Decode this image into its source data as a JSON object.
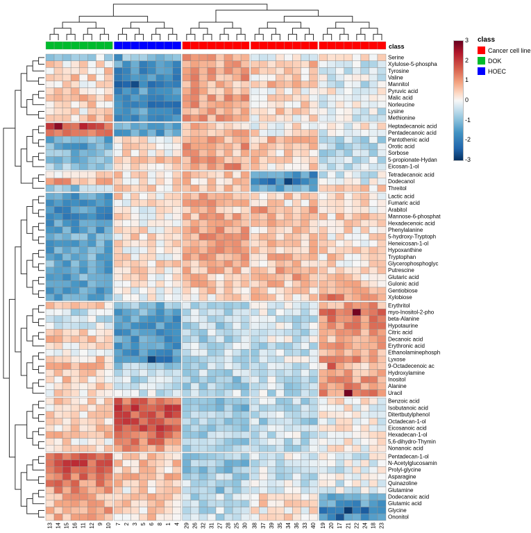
{
  "annotation": {
    "label": "class",
    "classes": [
      {
        "name": "Cancer cell line",
        "color": "#FF0000"
      },
      {
        "name": "DOK",
        "color": "#00BB2D"
      },
      {
        "name": "HOEC",
        "color": "#0000FF"
      }
    ]
  },
  "legend": {
    "title": "class"
  },
  "colorbar": {
    "ticks": [
      "3",
      "2",
      "1",
      "0",
      "-1",
      "-2",
      "-3"
    ],
    "max": 3,
    "min": -3
  },
  "chart_data": {
    "type": "heatmap",
    "value_range": [
      -3,
      3
    ],
    "jitter": 0.5,
    "palette": [
      [
        -3,
        "#053061"
      ],
      [
        -2.4,
        "#2166ac"
      ],
      [
        -1.6,
        "#4393c3"
      ],
      [
        -0.9,
        "#92c5de"
      ],
      [
        -0.35,
        "#d1e5f0"
      ],
      [
        0,
        "#f7f7f7"
      ],
      [
        0.35,
        "#fddbc7"
      ],
      [
        0.9,
        "#f4a582"
      ],
      [
        1.6,
        "#d6604d"
      ],
      [
        2.4,
        "#b2182b"
      ],
      [
        3,
        "#67001f"
      ]
    ],
    "col_groups": [
      {
        "class": "DOK",
        "cols": [
          "13",
          "14",
          "15",
          "16",
          "11",
          "12",
          "9",
          "10"
        ]
      },
      {
        "class": "HOEC",
        "cols": [
          "7",
          "2",
          "3",
          "5",
          "6",
          "8",
          "1",
          "4"
        ]
      },
      {
        "class": "Cancer cell line",
        "cols": [
          "29",
          "26",
          "32",
          "31",
          "27",
          "28",
          "25",
          "30"
        ]
      },
      {
        "class": "Cancer cell line",
        "cols": [
          "38",
          "37",
          "39",
          "35",
          "34",
          "36",
          "33",
          "40"
        ]
      },
      {
        "class": "Cancer cell line",
        "cols": [
          "19",
          "20",
          "17",
          "21",
          "22",
          "24",
          "18",
          "23"
        ]
      }
    ],
    "row_groups": [
      10,
      7,
      3,
      16,
      14,
      8,
      10
    ],
    "col_tree": [
      [
        0,
        1
      ],
      [
        2,
        [
          3,
          4
        ]
      ]
    ],
    "row_tree": [
      [
        0,
        [
          1,
          2
        ]
      ],
      [
        [
          3,
          4
        ],
        [
          5,
          6
        ]
      ]
    ],
    "row_labels": [
      "Serine",
      "Xylulose-5-phospha",
      "Tyrosine",
      "Valine",
      "Mannitol",
      "Pyruvic acid",
      "Malic acid",
      "Norleucine",
      "Lysine",
      "Methionine",
      "Heptadecanoic acid",
      "Pentadecanoic acid",
      "Pantothenic acid",
      "Orotic acid",
      "Sorbose",
      "5-propionate-Hydan",
      "Eicosan-1-ol",
      "Tetradecanoic acid",
      "Dodecanol",
      "Threitol",
      "Lactic acid",
      "Fumaric acid",
      "Arabitol",
      "Mannose-6-phosphat",
      "Hexadecenoic acid",
      "Phenylalanine",
      "5-hydroxy-Tryptoph",
      "Heneicosan-1-ol",
      "Hypoxanthine",
      "Tryptophan",
      "Glycerophosphoglyc",
      "Putrescine",
      "Glutaric acid",
      "Gulonic acid",
      "Gentiobiose",
      "Xylobiose",
      "Erythritol",
      "myo-Inositol-2-pho",
      "beta-Alanine",
      "Hypotaurine",
      "Citric acid",
      "Decanoic acid",
      "Erythronic acid",
      "Ethanolaminephosph",
      "Lyxose",
      "9-Octadecenoic ac",
      "Hydroxylamine",
      "Inositol",
      "Alanine",
      "Uracil",
      "Benzoic acid",
      "Isobutanoic acid",
      "Ditertbutylphenol",
      "Octadecan-1-ol",
      "Eicosanoic acid",
      "Hexadecan-1-ol",
      "5,6-dihydro-Thymin",
      "Nonanoic acid",
      "Pentadecan-1-ol",
      "N-Acetylglucosamin",
      "Prolyl-glycine",
      "Asparagine",
      "Quinazoline",
      "Glutamine",
      "Dodecanoic acid",
      "Glutamic acid",
      "Glycine",
      "Ononitol"
    ],
    "row_group_values": [
      [
        -0.5,
        -1.0,
        0.8,
        -0.2,
        0.2
      ],
      [
        0.3,
        -1.5,
        0.8,
        0.5,
        -0.3
      ],
      [
        0.4,
        -1.8,
        0.9,
        0.4,
        -0.2
      ],
      [
        0.5,
        -1.8,
        0.9,
        0.3,
        -0.3
      ],
      [
        0.2,
        -2.0,
        0.7,
        0.6,
        -0.4
      ],
      [
        0.4,
        -1.6,
        0.8,
        0.2,
        0.0
      ],
      [
        0.5,
        -1.7,
        0.9,
        0.4,
        -0.3
      ],
      [
        0.4,
        -1.9,
        1.0,
        0.3,
        -0.2
      ],
      [
        0.3,
        -1.6,
        0.8,
        0.5,
        -0.3
      ],
      [
        0.5,
        -1.5,
        0.9,
        0.2,
        -0.2
      ],
      [
        1.6,
        -1.2,
        0.6,
        0.1,
        0.0
      ],
      [
        1.1,
        -1.4,
        0.7,
        0.2,
        -0.1
      ],
      [
        -1.2,
        0.2,
        0.8,
        0.6,
        -0.5
      ],
      [
        -1.3,
        0.3,
        0.9,
        0.5,
        -0.6
      ],
      [
        -1.0,
        0.2,
        0.7,
        0.4,
        -0.5
      ],
      [
        -1.1,
        0.4,
        0.8,
        0.5,
        -0.4
      ],
      [
        -0.9,
        0.3,
        1.0,
        0.3,
        -0.5
      ],
      [
        0.2,
        0.3,
        0.6,
        -1.6,
        -0.3
      ],
      [
        0.8,
        0.2,
        0.5,
        -1.9,
        -0.2
      ],
      [
        -0.8,
        0.4,
        0.6,
        -1.1,
        0.3
      ],
      [
        -1.5,
        0.3,
        0.7,
        0.4,
        0.3
      ],
      [
        -1.8,
        0.2,
        0.8,
        0.4,
        0.3
      ],
      [
        -1.6,
        0.1,
        0.6,
        0.8,
        0.3
      ],
      [
        -1.7,
        0.2,
        0.7,
        0.5,
        0.4
      ],
      [
        -1.5,
        0.0,
        0.8,
        0.6,
        0.3
      ],
      [
        -1.4,
        0.2,
        0.9,
        0.4,
        0.3
      ],
      [
        -1.3,
        0.3,
        1.0,
        0.5,
        0.2
      ],
      [
        -1.2,
        0.2,
        0.8,
        0.6,
        0.2
      ],
      [
        -1.4,
        0.1,
        0.9,
        0.5,
        0.3
      ],
      [
        -1.3,
        0.2,
        0.8,
        0.6,
        0.4
      ],
      [
        -1.2,
        0.4,
        0.7,
        0.5,
        0.3
      ],
      [
        -1.5,
        0.3,
        0.6,
        0.7,
        0.4
      ],
      [
        -1.3,
        0.2,
        0.5,
        0.8,
        0.4
      ],
      [
        -1.2,
        0.1,
        0.6,
        0.6,
        0.5
      ],
      [
        -1.4,
        -0.2,
        0.4,
        0.5,
        1.0
      ],
      [
        -1.3,
        -0.1,
        0.3,
        0.4,
        1.1
      ],
      [
        0.3,
        -1.0,
        -0.4,
        -0.3,
        0.9
      ],
      [
        -0.5,
        -1.2,
        -0.6,
        -0.3,
        1.4
      ],
      [
        -0.4,
        -1.5,
        -0.5,
        -0.4,
        1.2
      ],
      [
        -0.3,
        -1.6,
        -0.6,
        -0.3,
        1.0
      ],
      [
        0.4,
        -1.4,
        -0.5,
        -0.4,
        0.8
      ],
      [
        0.5,
        -1.5,
        -0.6,
        -0.3,
        0.7
      ],
      [
        0.3,
        -1.6,
        -0.4,
        -0.5,
        0.8
      ],
      [
        0.2,
        -1.7,
        -0.5,
        -0.4,
        0.9
      ],
      [
        0.4,
        -1.8,
        -0.6,
        -0.3,
        1.0
      ],
      [
        0.6,
        -0.8,
        -0.5,
        -0.4,
        0.6
      ],
      [
        0.5,
        -0.6,
        -0.6,
        -0.5,
        0.8
      ],
      [
        0.4,
        -0.5,
        -0.7,
        -0.4,
        0.9
      ],
      [
        0.3,
        -0.4,
        -0.6,
        -0.5,
        1.0
      ],
      [
        0.2,
        -0.3,
        -0.5,
        -0.4,
        1.2
      ],
      [
        0.4,
        1.5,
        -0.8,
        -0.5,
        0.1
      ],
      [
        0.3,
        1.8,
        -0.9,
        -0.6,
        0.0
      ],
      [
        0.4,
        1.7,
        -0.8,
        -0.5,
        0.1
      ],
      [
        0.5,
        1.6,
        -0.7,
        -0.6,
        0.0
      ],
      [
        0.4,
        1.8,
        -0.6,
        -0.5,
        0.1
      ],
      [
        0.5,
        1.5,
        -0.7,
        -0.4,
        0.0
      ],
      [
        0.3,
        1.2,
        -0.8,
        -0.5,
        0.2
      ],
      [
        0.4,
        0.9,
        -0.6,
        -0.4,
        0.1
      ],
      [
        1.5,
        0.6,
        -0.8,
        -0.3,
        -0.2
      ],
      [
        1.7,
        0.5,
        -0.9,
        -0.4,
        -0.1
      ],
      [
        1.6,
        0.4,
        -0.8,
        -0.3,
        -0.2
      ],
      [
        1.4,
        0.6,
        -0.7,
        -0.4,
        -0.1
      ],
      [
        1.2,
        0.5,
        -0.6,
        -0.3,
        -0.2
      ],
      [
        1.0,
        0.3,
        -0.9,
        -0.2,
        -0.3
      ],
      [
        0.8,
        0.4,
        -0.5,
        0.2,
        -1.2
      ],
      [
        0.7,
        0.5,
        -0.6,
        0.3,
        -1.5
      ],
      [
        0.8,
        0.3,
        -0.5,
        0.2,
        -2.0
      ],
      [
        0.6,
        0.4,
        -0.4,
        0.3,
        -1.7
      ]
    ],
    "outliers": [
      [
        10,
        1,
        2.7
      ],
      [
        10,
        4,
        2.3
      ],
      [
        4,
        10,
        -2.7
      ],
      [
        18,
        28,
        -2.8
      ],
      [
        18,
        26,
        -2.4
      ],
      [
        44,
        12,
        -2.8
      ],
      [
        37,
        36,
        2.9
      ],
      [
        49,
        35,
        2.9
      ],
      [
        66,
        35,
        -2.9
      ],
      [
        66,
        37,
        -2.5
      ],
      [
        67,
        34,
        -2.6
      ],
      [
        45,
        33,
        1.8
      ],
      [
        0,
        8,
        -1.8
      ]
    ]
  }
}
